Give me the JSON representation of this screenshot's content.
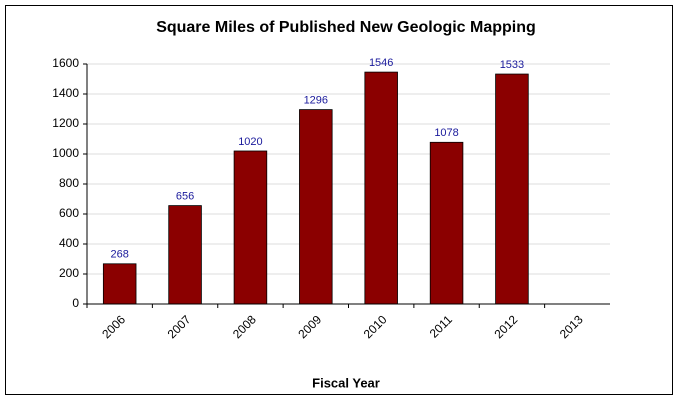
{
  "chart_data": {
    "type": "bar",
    "title": "Square Miles of Published New Geologic Mapping",
    "x_label": "Fiscal Year",
    "categories": [
      "2006",
      "2007",
      "2008",
      "2009",
      "2010",
      "2011",
      "2012",
      "2013"
    ],
    "values": [
      268,
      656,
      1020,
      1296,
      1546,
      1078,
      1533,
      null
    ],
    "color": "#8b0000",
    "label_color": "#1a1a9c",
    "ylim": [
      0,
      1600
    ],
    "yticks": [
      0,
      200,
      400,
      600,
      800,
      1000,
      1200,
      1400,
      1600
    ],
    "grid": true
  }
}
